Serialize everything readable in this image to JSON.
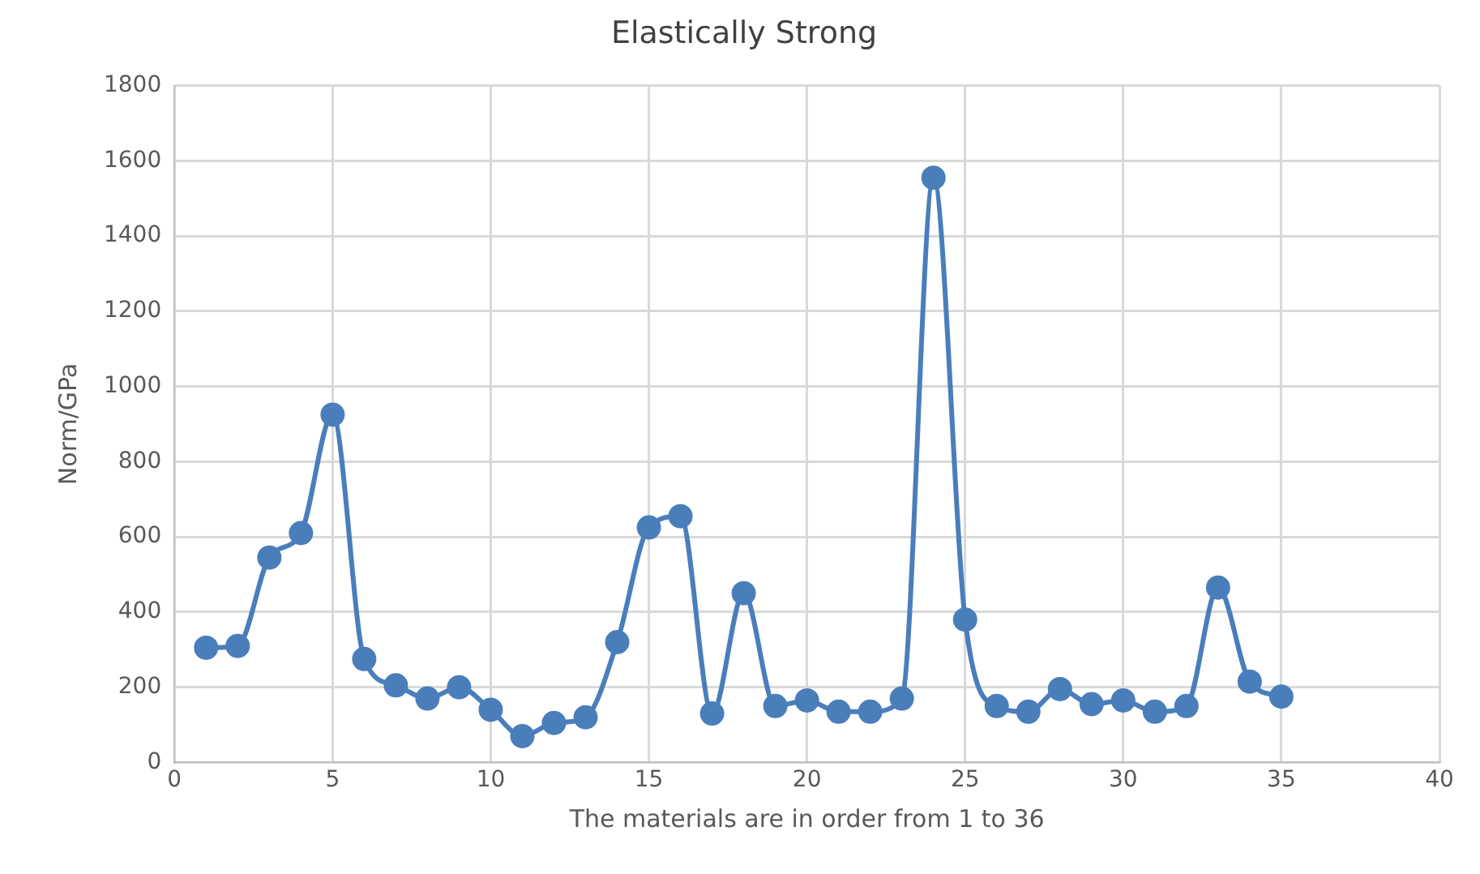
{
  "chart_data": {
    "type": "line",
    "title": "Elastically Strong",
    "xlabel": "The materials are in order from 1 to 36",
    "ylabel": "Norm/GPa",
    "x": [
      1,
      2,
      3,
      4,
      5,
      6,
      7,
      8,
      9,
      10,
      11,
      12,
      13,
      14,
      15,
      16,
      17,
      18,
      19,
      20,
      21,
      22,
      23,
      24,
      25,
      26,
      27,
      28,
      29,
      30,
      31,
      32,
      33,
      34,
      35
    ],
    "series": [
      {
        "color": "#4a7ebb",
        "values": [
          305,
          310,
          545,
          610,
          925,
          275,
          205,
          170,
          200,
          140,
          70,
          105,
          120,
          320,
          625,
          655,
          130,
          450,
          150,
          165,
          135,
          135,
          170,
          1555,
          380,
          150,
          135,
          195,
          155,
          165,
          135,
          150,
          465,
          215,
          175
        ]
      }
    ],
    "xlim": [
      0,
      40
    ],
    "xticks": [
      0,
      5,
      10,
      15,
      20,
      25,
      30,
      35,
      40
    ],
    "ylim": [
      0,
      1800
    ],
    "yticks": [
      0,
      200,
      400,
      600,
      800,
      1000,
      1200,
      1400,
      1600,
      1800
    ],
    "grid": true,
    "legend": false,
    "marker": "circle",
    "line_style": "solid"
  }
}
